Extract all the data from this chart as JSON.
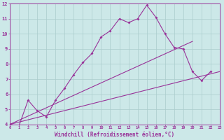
{
  "bg_color": "#cce8e8",
  "line_color": "#993399",
  "grid_color": "#aacccc",
  "xlim": [
    0,
    23
  ],
  "ylim": [
    4,
    12
  ],
  "xticks": [
    0,
    1,
    2,
    3,
    4,
    5,
    6,
    7,
    8,
    9,
    10,
    11,
    12,
    13,
    14,
    15,
    16,
    17,
    18,
    19,
    20,
    21,
    22,
    23
  ],
  "yticks": [
    4,
    5,
    6,
    7,
    8,
    9,
    10,
    11,
    12
  ],
  "line1_x": [
    0,
    1,
    2,
    3,
    4,
    5,
    6,
    7,
    8,
    9,
    10,
    11,
    12,
    13,
    14,
    15,
    16,
    17,
    18,
    19,
    20,
    21,
    22
  ],
  "line1_y": [
    4.0,
    3.9,
    5.6,
    4.9,
    4.5,
    5.6,
    6.4,
    7.3,
    8.1,
    8.7,
    9.8,
    10.2,
    11.0,
    10.75,
    11.0,
    11.9,
    11.1,
    10.0,
    9.1,
    9.0,
    7.5,
    6.9,
    7.5
  ],
  "line2_x": [
    0,
    20
  ],
  "line2_y": [
    4.0,
    9.5
  ],
  "line3_x": [
    0,
    23
  ],
  "line3_y": [
    4.0,
    7.5
  ],
  "xlabel": "Windchill (Refroidissement éolien,°C)"
}
